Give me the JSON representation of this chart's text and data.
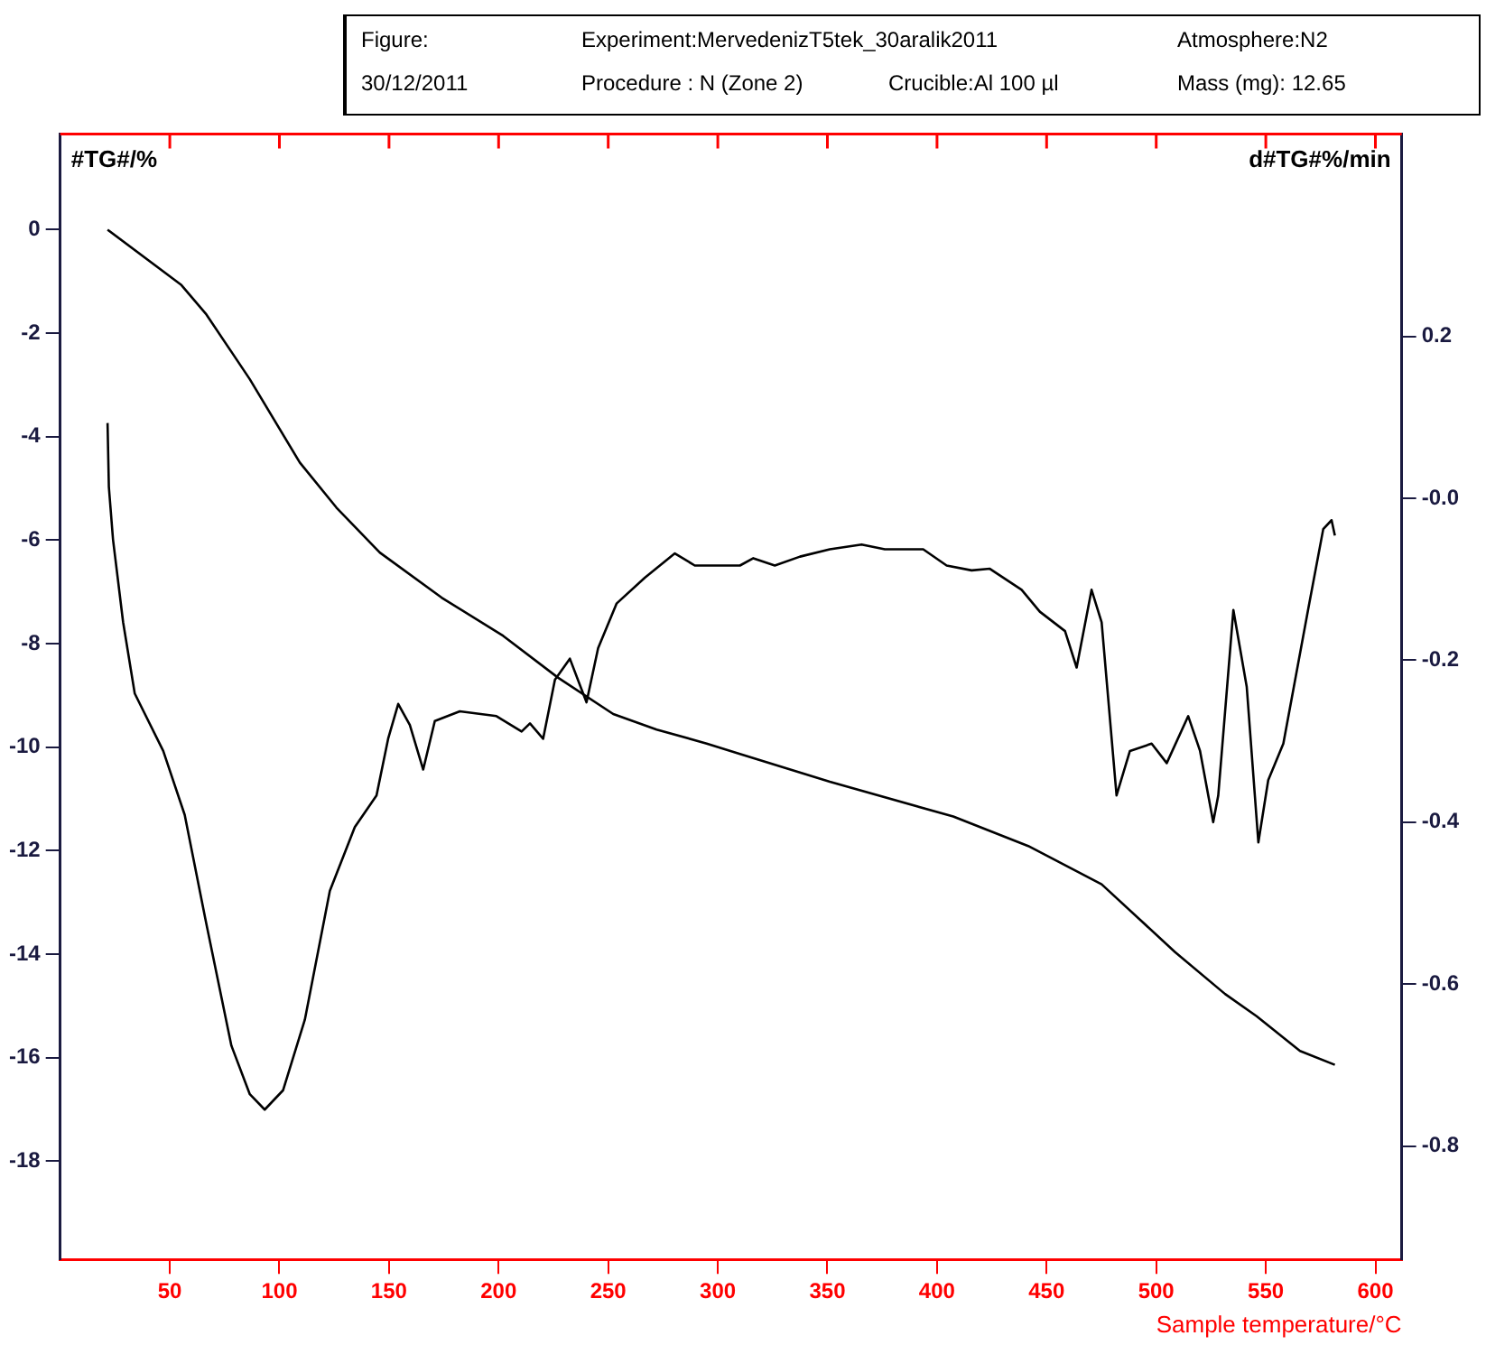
{
  "chart_data": {
    "type": "line",
    "xlabel": "Sample temperature/°C",
    "ylabel": "#TG#/%",
    "y2label": "d#TG#%/min",
    "annotations": [
      "Figure:",
      "Experiment:MervedenizT5tek_30aralik2011",
      "Atmosphere:N2",
      "30/12/2011",
      "Procedure : N (Zone 2)",
      "Crucible:Al 100 µl",
      "Mass (mg):   12.65"
    ],
    "xlim": [
      0,
      612
    ],
    "xticks": [
      50,
      100,
      150,
      200,
      250,
      300,
      350,
      400,
      450,
      500,
      550,
      600
    ],
    "ylim": [
      -19.9,
      1.85
    ],
    "yticks": [
      0,
      -2,
      -4,
      -6,
      -8,
      -10,
      -12,
      -14,
      -16,
      -18
    ],
    "y2lim": [
      -0.94,
      0.45
    ],
    "y2ticks": [
      0.2,
      {
        "value": 0,
        "label": "-0.0"
      },
      -0.2,
      -0.4,
      -0.6,
      -0.8
    ],
    "grid": false,
    "legend": false,
    "marker": "none",
    "line_style": "solid",
    "series": [
      {
        "color": "#000000",
        "x": [
          21.6,
          55.3,
          66.7,
          86.5,
          109.3,
          126.0,
          145.8,
          174.0,
          202.1,
          227.2,
          252.3,
          272.1,
          294.9,
          310.1,
          351.1,
          407.4,
          441.6,
          475.1,
          508.6,
          531.4,
          545.8,
          565.6,
          581.5
        ],
        "values": [
          0,
          -1.07,
          -1.64,
          -2.89,
          -4.5,
          -5.37,
          -6.24,
          -7.11,
          -7.85,
          -8.66,
          -9.36,
          -9.66,
          -9.93,
          -10.13,
          -10.67,
          -11.34,
          -11.91,
          -12.65,
          -13.96,
          -14.77,
          -15.2,
          -15.87,
          -16.14
        ]
      },
      {
        "color": "#000000",
        "axis": "y2",
        "x": [
          21.6,
          22.2,
          24.1,
          28.7,
          34.0,
          47.0,
          56.8,
          66.7,
          78.1,
          86.5,
          93.3,
          101.7,
          111.6,
          123.0,
          134.4,
          144.3,
          149.6,
          154.2,
          159.5,
          165.6,
          170.9,
          182.3,
          199.0,
          210.5,
          214.3,
          220.3,
          225.7,
          232.5,
          240.1,
          245.4,
          253.8,
          266.7,
          280.4,
          289.5,
          310.1,
          316.2,
          326.0,
          337.5,
          351.1,
          365.6,
          376.2,
          393.7,
          404.4,
          415.8,
          424.1,
          438.6,
          446.9,
          458.4,
          463.7,
          470.5,
          475.1,
          481.9,
          488.0,
          497.9,
          504.8,
          514.6,
          520.0,
          526.0,
          528.3,
          535.2,
          541.3,
          546.6,
          551.1,
          558.0,
          569.4,
          576.2,
          580.0,
          581.5
        ],
        "values": [
          0.093,
          0.014,
          -0.051,
          -0.153,
          -0.241,
          -0.312,
          -0.391,
          -0.526,
          -0.676,
          -0.736,
          -0.755,
          -0.731,
          -0.644,
          -0.485,
          -0.406,
          -0.367,
          -0.297,
          -0.254,
          -0.28,
          -0.335,
          -0.275,
          -0.263,
          -0.269,
          -0.288,
          -0.278,
          -0.297,
          -0.224,
          -0.198,
          -0.252,
          -0.185,
          -0.13,
          -0.098,
          -0.068,
          -0.083,
          -0.083,
          -0.074,
          -0.083,
          -0.072,
          -0.063,
          -0.057,
          -0.063,
          -0.063,
          -0.083,
          -0.089,
          -0.087,
          -0.113,
          -0.14,
          -0.164,
          -0.209,
          -0.113,
          -0.153,
          -0.367,
          -0.312,
          -0.303,
          -0.327,
          -0.269,
          -0.312,
          -0.4,
          -0.367,
          -0.138,
          -0.233,
          -0.425,
          -0.348,
          -0.303,
          -0.136,
          -0.038,
          -0.027,
          -0.046
        ]
      }
    ]
  }
}
